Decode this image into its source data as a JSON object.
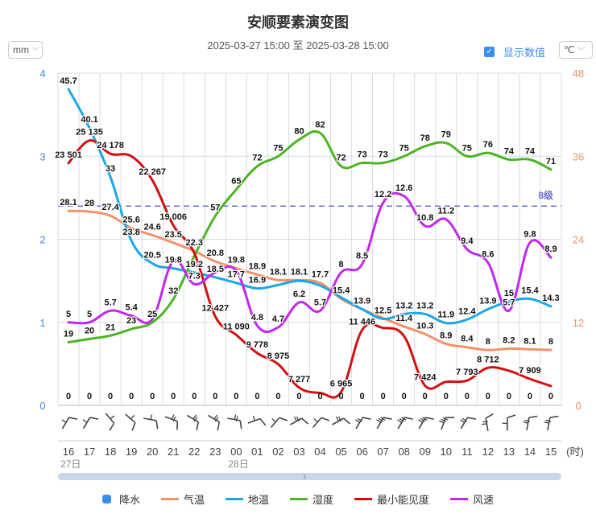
{
  "title": "安顺要素演变图",
  "subtitle": "2025-03-27 15:00 至 2025-03-28 15:00",
  "controls": {
    "rain_unit": "mm",
    "temp_unit": "℃",
    "show_values_label": "显示数值",
    "show_values_checked": true,
    "checkbox_mark": "✓",
    "chevron": "﹀"
  },
  "chart_data": {
    "type": "line",
    "title": "安顺要素演变图",
    "x": [
      "16",
      "17",
      "18",
      "19",
      "20",
      "21",
      "22",
      "23",
      "00",
      "01",
      "02",
      "03",
      "04",
      "05",
      "06",
      "07",
      "08",
      "09",
      "10",
      "11",
      "12",
      "13",
      "14",
      "15"
    ],
    "x_unit_label": "(时)",
    "date_labels": [
      {
        "index": 0,
        "label": "27日"
      },
      {
        "index": 8,
        "label": "28日"
      }
    ],
    "left_axis": {
      "name": "降水 (mm)",
      "ticks": [
        "0",
        "1",
        "2",
        "3",
        "4"
      ],
      "range": [
        0,
        4
      ],
      "color": "#4a86d8"
    },
    "right_axis": {
      "name": "温度 (℃)",
      "ticks": [
        "0",
        "12",
        "24",
        "36",
        "48"
      ],
      "range": [
        0,
        48
      ],
      "color": "#f0926a"
    },
    "grid": true,
    "legend_position": "bottom",
    "threshold": {
      "label": "8级",
      "series": "wind",
      "value": 12,
      "color": "#6b6fd4"
    },
    "series": [
      {
        "key": "rain",
        "name": "降水",
        "type": "bar",
        "color": "#3b8ef0",
        "range": [
          0,
          4
        ],
        "values": [
          0,
          0,
          0,
          0,
          0,
          0,
          0,
          0,
          0,
          0,
          0,
          0,
          0,
          0,
          0,
          0,
          0,
          0,
          0,
          0,
          0,
          0,
          0,
          0
        ]
      },
      {
        "key": "temp",
        "name": "气温",
        "type": "line",
        "color": "#f0926a",
        "range": [
          0,
          48
        ],
        "values": [
          28.1,
          28,
          27.4,
          25.6,
          24.6,
          23.5,
          22.3,
          20.8,
          19.8,
          18.9,
          18.1,
          18.1,
          17.7,
          15.4,
          13.9,
          12.6,
          11.4,
          10.3,
          8.9,
          8.4,
          8,
          8.2,
          8.1,
          8
        ],
        "labels": [
          "28.1",
          "28",
          "27.4",
          "25.6",
          "24.6",
          "23.5",
          "22.3",
          "20.8",
          "19.8",
          "18.9",
          "18.1",
          "18.1",
          "17.7",
          "15.4",
          "",
          "",
          "11.4",
          "10.3",
          "8.9",
          "8.4",
          "8",
          "8.2",
          "8.1",
          "8"
        ]
      },
      {
        "key": "ground",
        "name": "地温",
        "type": "line",
        "color": "#1ba7e6",
        "range": [
          0,
          48
        ],
        "values": [
          45.7,
          40.1,
          33,
          23.8,
          20.5,
          19.8,
          19.2,
          18.5,
          17.7,
          16.9,
          17.4,
          18.0,
          17.3,
          15.6,
          13.9,
          12.5,
          13.2,
          13.2,
          11.9,
          12.4,
          13.9,
          15,
          15.4,
          14.3
        ],
        "labels": [
          "45.7",
          "40.1",
          "33",
          "23.8",
          "20.5",
          "19.8",
          "19.2",
          "18.5",
          "17.7",
          "16.9",
          "",
          "",
          "",
          "",
          "13.9",
          "12.5",
          "13.2",
          "13.2",
          "11.9",
          "12.4",
          "13.9",
          "15",
          "15.4",
          "14.3"
        ]
      },
      {
        "key": "humidity",
        "name": "湿度",
        "type": "line",
        "color": "#4cb523",
        "range": [
          0,
          100
        ],
        "values": [
          19,
          20,
          21,
          23,
          25,
          32,
          45,
          57,
          65,
          72,
          75,
          80,
          82,
          72,
          73,
          73,
          75,
          78,
          79,
          75,
          76,
          74,
          74,
          71
        ],
        "labels": [
          "19",
          "20",
          "21",
          "23",
          "25",
          "32",
          "",
          "57",
          "65",
          "72",
          "75",
          "80",
          "82",
          "72",
          "73",
          "73",
          "75",
          "78",
          "79",
          "75",
          "76",
          "74",
          "74",
          "71"
        ]
      },
      {
        "key": "visibility",
        "name": "最小能见度",
        "type": "line",
        "color": "#d40f0f",
        "range": [
          6000,
          30000
        ],
        "values": [
          23501,
          25135,
          24178,
          24000,
          22267,
          19006,
          17000,
          12427,
          11090,
          9778,
          8975,
          7277,
          6900,
          6965,
          11446,
          11600,
          11000,
          7424,
          7700,
          7793,
          8712,
          8500,
          7909,
          7400
        ],
        "labels": [
          "23 501",
          "25 135",
          "24 178",
          "",
          "22 267",
          "19 006",
          "",
          "12 427",
          "11 090",
          "9 778",
          "8 975",
          "7 277",
          "",
          "6 965",
          "11 446",
          "",
          "",
          "7 424",
          "",
          "7 793",
          "8 712",
          "",
          "7 909",
          ""
        ]
      },
      {
        "key": "wind",
        "name": "风速",
        "type": "line",
        "color": "#c227ee",
        "range": [
          0,
          20
        ],
        "values": [
          5,
          5,
          5.7,
          5.4,
          5.2,
          8.7,
          7.3,
          8.0,
          8.1,
          4.8,
          4.7,
          6.2,
          5.7,
          8,
          8.5,
          12.2,
          12.6,
          10.8,
          11.2,
          9.4,
          8.6,
          5.7,
          9.8,
          8.9
        ],
        "labels": [
          "5",
          "5",
          "5.7",
          "5.4",
          "",
          "",
          "7.3",
          "",
          "",
          "4.8",
          "4.7",
          "6.2",
          "5.7",
          "8",
          "8.5",
          "12.2",
          "12.6",
          "10.8",
          "11.2",
          "9.4",
          "8.6",
          "5.7",
          "9.8",
          "8.9"
        ]
      }
    ],
    "wind_barbs": {
      "directions_deg": [
        240,
        240,
        350,
        340,
        310,
        320,
        330,
        330,
        310,
        280,
        250,
        270,
        250,
        270,
        240,
        240,
        240,
        240,
        230,
        240,
        200,
        210,
        220,
        220
      ],
      "color": "#444"
    }
  },
  "legend": [
    {
      "key": "rain",
      "label": "降水",
      "color": "#3b8ef0",
      "shape": "dot"
    },
    {
      "key": "temp",
      "label": "气温",
      "color": "#f0926a",
      "shape": "line"
    },
    {
      "key": "ground",
      "label": "地温",
      "color": "#1ba7e6",
      "shape": "line"
    },
    {
      "key": "humidity",
      "label": "湿度",
      "color": "#4cb523",
      "shape": "line"
    },
    {
      "key": "visibility",
      "label": "最小能见度",
      "color": "#d40f0f",
      "shape": "line"
    },
    {
      "key": "wind",
      "label": "风速",
      "color": "#c227ee",
      "shape": "line"
    }
  ],
  "scrollbar": {
    "grip": "|||"
  }
}
